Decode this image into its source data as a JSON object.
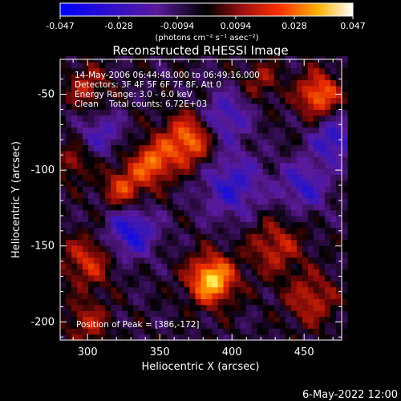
{
  "chart_data": {
    "type": "heatmap",
    "title": "Reconstructed RHESSI Image",
    "xlabel": "Heliocentric X (arcsec)",
    "ylabel": "Heliocentric Y (arcsec)",
    "xlim": [
      281,
      476
    ],
    "ylim": [
      -212,
      -27
    ],
    "x_ticks": [
      300,
      350,
      400,
      450
    ],
    "y_ticks": [
      -50,
      -100,
      -150,
      -200
    ],
    "colorbar": {
      "range": [
        -0.047,
        0.047
      ],
      "ticks": [
        "-0.047",
        "-0.028",
        "-0.0094",
        "0.0094",
        "0.028",
        "0.047"
      ],
      "units": "(photons cm⁻² s⁻¹ asec⁻²)",
      "colormap": "blue-purple-red-yellow-white"
    },
    "annotations": [
      "14-May-2006 06:44:48.000 to 06:49:16.000",
      "Detectors: 3F 4F 5F 6F 7F 8F, Att 0",
      "Energy Range: 3.0 - 6.0 keV",
      "Clean    Total counts: 6.72E+03",
      "Position of Peak = [386,-172]"
    ],
    "peak": {
      "x": 386,
      "y": -172
    },
    "sources": [
      {
        "x": 370,
        "y": -80,
        "sigma": 12,
        "amp": 0.034
      },
      {
        "x": 345,
        "y": -95,
        "sigma": 10,
        "amp": 0.03
      },
      {
        "x": 325,
        "y": -112,
        "sigma": 10,
        "amp": 0.026
      },
      {
        "x": 386,
        "y": -172,
        "sigma": 11,
        "amp": 0.045
      },
      {
        "x": 460,
        "y": -50,
        "sigma": 10,
        "amp": 0.033
      },
      {
        "x": 300,
        "y": -160,
        "sigma": 12,
        "amp": 0.022
      },
      {
        "x": 430,
        "y": -150,
        "sigma": 13,
        "amp": 0.02
      },
      {
        "x": 300,
        "y": -45,
        "sigma": 10,
        "amp": 0.018
      },
      {
        "x": 455,
        "y": -185,
        "sigma": 12,
        "amp": 0.02
      },
      {
        "x": 300,
        "y": -200,
        "sigma": 10,
        "amp": 0.018
      },
      {
        "x": 420,
        "y": -40,
        "sigma": 9,
        "amp": 0.015
      },
      {
        "x": 290,
        "y": -95,
        "sigma": 8,
        "amp": 0.016
      },
      {
        "x": 330,
        "y": -140,
        "sigma": 12,
        "amp": -0.03
      },
      {
        "x": 400,
        "y": -110,
        "sigma": 15,
        "amp": -0.024
      },
      {
        "x": 395,
        "y": -65,
        "sigma": 12,
        "amp": -0.022
      },
      {
        "x": 470,
        "y": -80,
        "sigma": 10,
        "amp": -0.026
      },
      {
        "x": 310,
        "y": -75,
        "sigma": 10,
        "amp": -0.018
      },
      {
        "x": 450,
        "y": -110,
        "sigma": 12,
        "amp": -0.022
      }
    ]
  },
  "footer": {
    "timestamp": "6-May-2022 12:00"
  }
}
